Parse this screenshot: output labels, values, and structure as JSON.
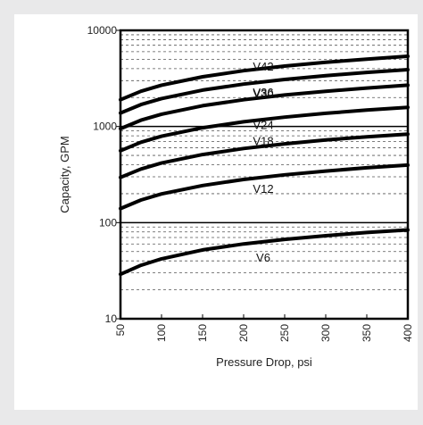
{
  "chart_data": {
    "type": "line",
    "title": "",
    "xlabel": "Pressure Drop, psi",
    "ylabel": "Capacity, GPM",
    "xlim": [
      50,
      400
    ],
    "ylim": [
      10,
      10000
    ],
    "yscale": "log",
    "grid": "dashed minor gridlines, solid lines at 100 and 1000",
    "x_ticks": [
      "50",
      "100",
      "150",
      "200",
      "250",
      "300",
      "350",
      "400"
    ],
    "y_ticks": [
      "10",
      "100",
      "1000",
      "10000"
    ],
    "series": [
      {
        "name": "V6",
        "x": [
          50,
          75,
          100,
          150,
          200,
          250,
          300,
          350,
          400
        ],
        "y": [
          29,
          36,
          42,
          52,
          60,
          67,
          73,
          79,
          84
        ]
      },
      {
        "name": "V12",
        "x": [
          50,
          75,
          100,
          150,
          200,
          250,
          300,
          350,
          400
        ],
        "y": [
          140,
          172,
          199,
          243,
          281,
          314,
          344,
          372,
          397
        ]
      },
      {
        "name": "V18",
        "x": [
          50,
          75,
          100,
          150,
          200,
          250,
          300,
          350,
          400
        ],
        "y": [
          295,
          361,
          417,
          511,
          590,
          660,
          723,
          781,
          834
        ]
      },
      {
        "name": "V24",
        "x": [
          50,
          75,
          100,
          150,
          200,
          250,
          300,
          350,
          400
        ],
        "y": [
          560,
          686,
          792,
          970,
          1120,
          1252,
          1372,
          1482,
          1584
        ]
      },
      {
        "name": "V30",
        "x": [
          50,
          75,
          100,
          150,
          200,
          250,
          300,
          350,
          400
        ],
        "y": [
          950,
          1163,
          1343,
          1645,
          1900,
          2124,
          2327,
          2513,
          2687
        ]
      },
      {
        "name": "V36",
        "x": [
          50,
          75,
          100,
          150,
          200,
          250,
          300,
          350,
          400
        ],
        "y": [
          1380,
          1690,
          1952,
          2390,
          2760,
          3086,
          3380,
          3651,
          3903
        ]
      },
      {
        "name": "V42",
        "x": [
          50,
          75,
          100,
          150,
          200,
          250,
          300,
          350,
          400
        ],
        "y": [
          1900,
          2327,
          2687,
          3291,
          3800,
          4249,
          4654,
          5027,
          5374
        ]
      }
    ]
  }
}
